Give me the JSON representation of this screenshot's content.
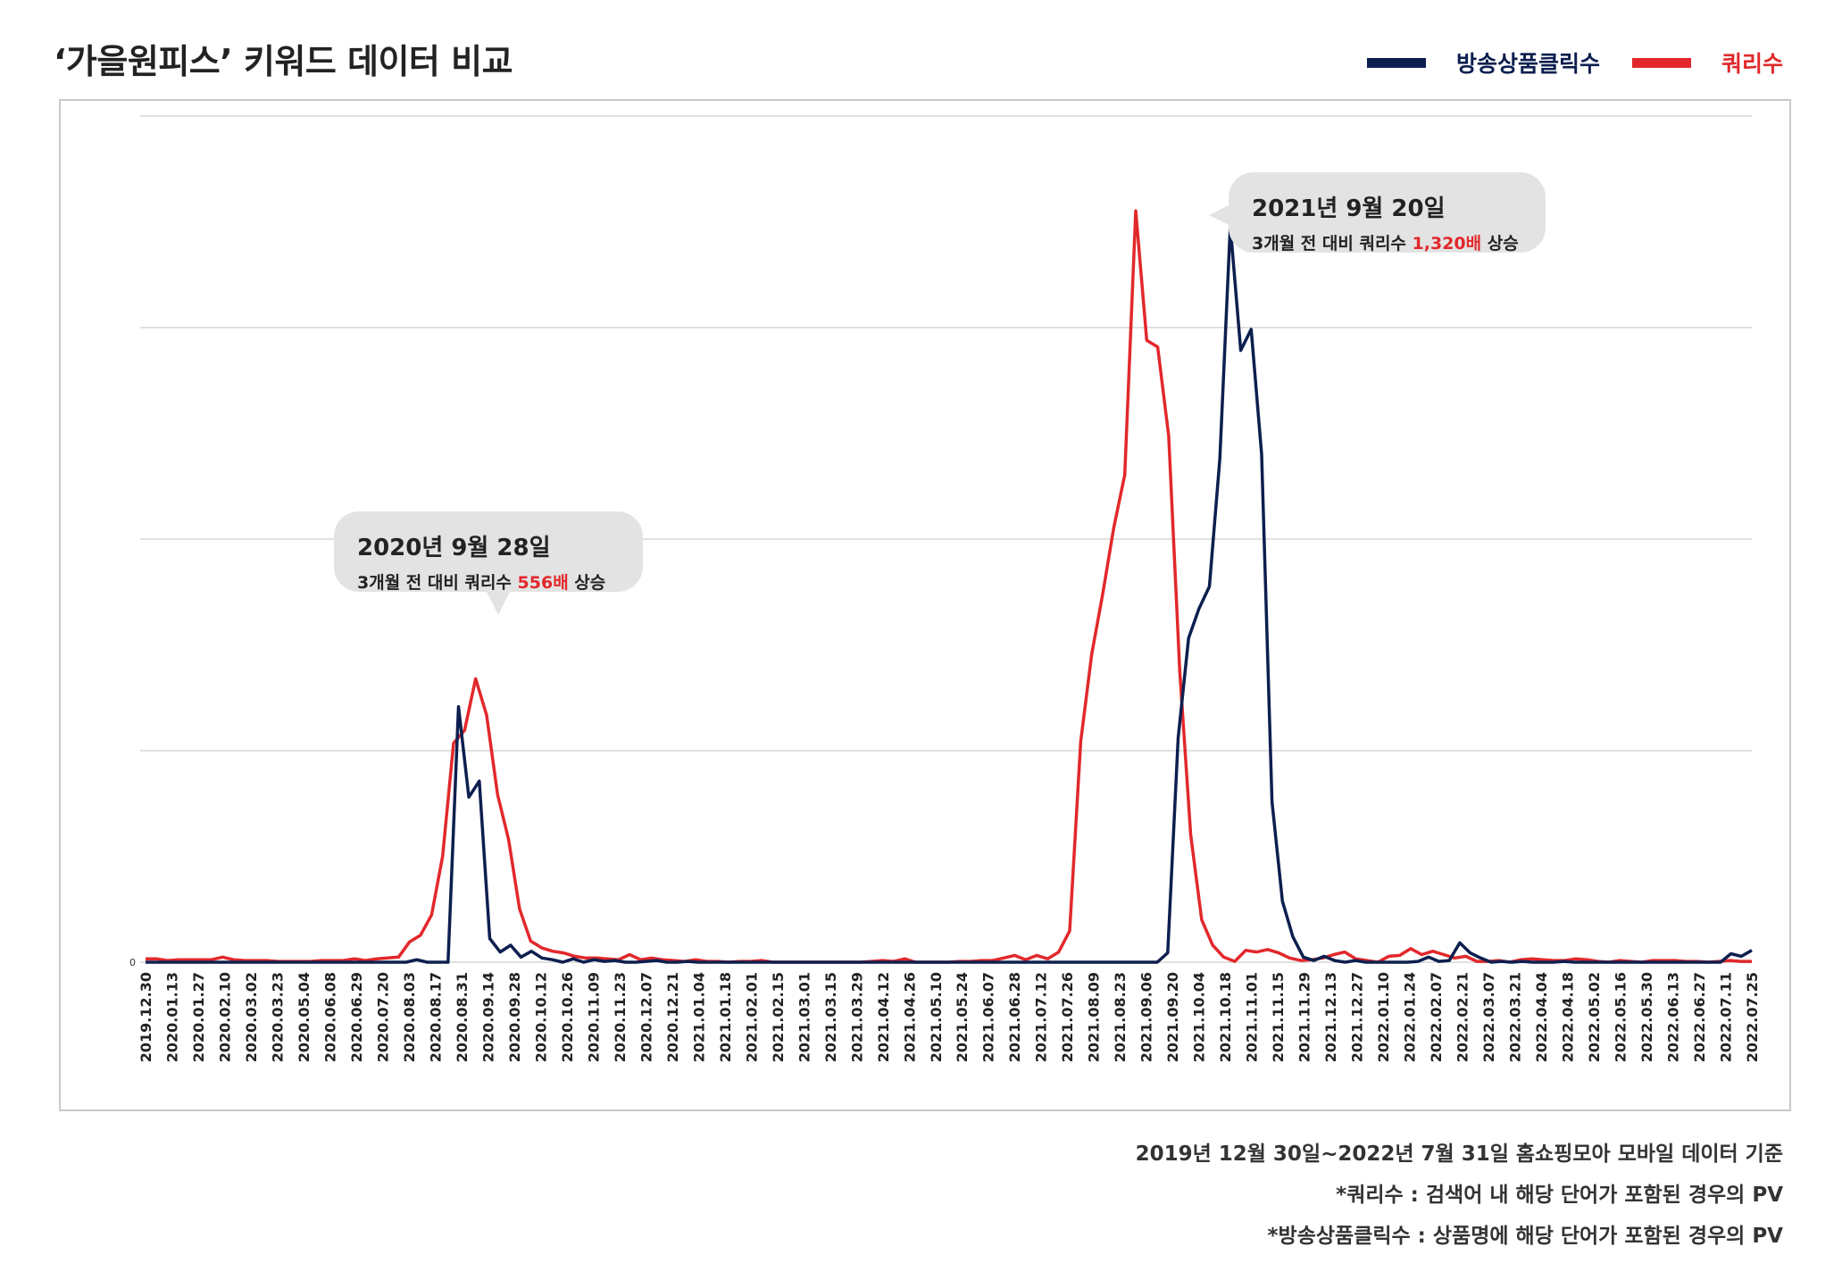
{
  "title": "‘가을원피스’ 키워드 데이터 비교",
  "legend": {
    "items": [
      {
        "label": "방송상품클릭수",
        "color": "#0d1f4f"
      },
      {
        "label": "쿼리수",
        "color": "#e2282b"
      }
    ]
  },
  "callouts": [
    {
      "heading": "2020년 9월 28일",
      "text_before": "3개월 전 대비 쿼리수 ",
      "highlight": "556배",
      "text_after": " 상승"
    },
    {
      "heading": "2021년 9월 20일",
      "text_before": "3개월 전 대비 쿼리수 ",
      "highlight": "1,320배",
      "text_after": " 상승"
    }
  ],
  "notes": [
    "2019년 12월 30일~2022년 7월 31일 홈쇼핑모아 모바일 데이터 기준",
    "*쿼리수 : 검색어 내 해당 단어가 포함된 경우의 PV",
    "*방송상품클릭수 : 상품명에 해당 단어가 포함된 경우의 PV"
  ],
  "chart_data": {
    "type": "line",
    "title": "‘가을원피스’ 키워드 데이터 비교",
    "xlabel": "",
    "ylabel": "",
    "y_tick_labels": [
      "0"
    ],
    "ylim": [
      0,
      100
    ],
    "grid": true,
    "legend_position": "top-right",
    "x_tick_labels": [
      "2019.12.30",
      "2020.01.13",
      "2020.01.27",
      "2020.02.10",
      "2020.03.02",
      "2020.03.23",
      "2020.05.04",
      "2020.06.08",
      "2020.06.29",
      "2020.07.20",
      "2020.08.03",
      "2020.08.17",
      "2020.08.31",
      "2020.09.14",
      "2020.09.28",
      "2020.10.12",
      "2020.10.26",
      "2020.11.09",
      "2020.11.23",
      "2020.12.07",
      "2020.12.21",
      "2021.01.04",
      "2021.01.18",
      "2021.02.01",
      "2021.02.15",
      "2021.03.01",
      "2021.03.15",
      "2021.03.29",
      "2021.04.12",
      "2021.04.26",
      "2021.05.10",
      "2021.05.24",
      "2021.06.07",
      "2021.06.28",
      "2021.07.12",
      "2021.07.26",
      "2021.08.09",
      "2021.08.23",
      "2021.09.06",
      "2021.09.20",
      "2021.10.04",
      "2021.10.18",
      "2021.11.01",
      "2021.11.15",
      "2021.11.29",
      "2021.12.13",
      "2021.12.27",
      "2022.01.10",
      "2022.01.24",
      "2022.02.07",
      "2022.02.21",
      "2022.03.07",
      "2022.03.21",
      "2022.04.04",
      "2022.04.18",
      "2022.05.02",
      "2022.05.16",
      "2022.05.30",
      "2022.06.13",
      "2022.06.27",
      "2022.07.11",
      "2022.07.25"
    ],
    "series": [
      {
        "name": "방송상품클릭수",
        "color": "#0d1f4f",
        "values": [
          0,
          0,
          0,
          0,
          0,
          0,
          0,
          0,
          0,
          0,
          0,
          0,
          0,
          0,
          0,
          0,
          0,
          0,
          0,
          0,
          0,
          0,
          0,
          0,
          0,
          0,
          0.3,
          0,
          0,
          0,
          30.2,
          19.5,
          21.4,
          2.8,
          1.2,
          2,
          0.6,
          1.3,
          0.5,
          0.3,
          0,
          0.4,
          0,
          0.3,
          0.1,
          0.2,
          0,
          0,
          0.1,
          0.2,
          0,
          0,
          0.1,
          0,
          0,
          0,
          0,
          0,
          0,
          0,
          0,
          0,
          0,
          0,
          0,
          0,
          0,
          0,
          0,
          0,
          0,
          0,
          0,
          0,
          0,
          0,
          0,
          0,
          0,
          0,
          0,
          0,
          0,
          0,
          0,
          0,
          0,
          0,
          0,
          0,
          0,
          0,
          0,
          0,
          0,
          0,
          0,
          0,
          1.1,
          26.5,
          38.3,
          41.8,
          44.4,
          59.5,
          87,
          72.3,
          74.8,
          60,
          19,
          7.2,
          3,
          0.6,
          0.2,
          0.7,
          0.2,
          0,
          0.2,
          0,
          0,
          0,
          0,
          0,
          0.1,
          0.6,
          0.1,
          0.2,
          2.3,
          1.1,
          0.5,
          0,
          0.1,
          0,
          0.1,
          0,
          0,
          0,
          0.1,
          0,
          0,
          0,
          0,
          0,
          0,
          0,
          0,
          0,
          0,
          0,
          0,
          0,
          0,
          0,
          1,
          0.7,
          1.4
        ]
      },
      {
        "name": "쿼리수",
        "color": "#e2282b",
        "values": [
          0.4,
          0.4,
          0.2,
          0.3,
          0.3,
          0.3,
          0.3,
          0.6,
          0.3,
          0.2,
          0.2,
          0.2,
          0.1,
          0.1,
          0.1,
          0.1,
          0.2,
          0.2,
          0.2,
          0.4,
          0.2,
          0.4,
          0.5,
          0.6,
          2.4,
          3.2,
          5.6,
          12.5,
          25.9,
          27.4,
          33.5,
          29.2,
          19.8,
          14.5,
          6.3,
          2.5,
          1.7,
          1.3,
          1.1,
          0.7,
          0.5,
          0.5,
          0.4,
          0.3,
          0.9,
          0.3,
          0.5,
          0.3,
          0.2,
          0.1,
          0.3,
          0.1,
          0.1,
          0,
          0.1,
          0.1,
          0.2,
          0,
          0,
          0,
          0,
          0,
          0,
          0,
          0,
          0,
          0.1,
          0.2,
          0.1,
          0.4,
          0,
          0,
          0,
          0,
          0.1,
          0.1,
          0.2,
          0.2,
          0.5,
          0.8,
          0.3,
          0.8,
          0.4,
          1.2,
          3.7,
          26.1,
          36.4,
          43.5,
          51.3,
          57.6,
          88.8,
          73.5,
          72.7,
          62.2,
          34.4,
          15,
          5,
          2,
          0.6,
          0.1,
          1.4,
          1.2,
          1.5,
          1.1,
          0.5,
          0.2,
          0.3,
          0.5,
          0.9,
          1.2,
          0.4,
          0.2,
          0,
          0.7,
          0.8,
          1.6,
          0.9,
          1.3,
          0.9,
          0.5,
          0.7,
          0.1,
          0.1,
          0.2,
          0,
          0.3,
          0.4,
          0.3,
          0.2,
          0.2,
          0.4,
          0.3,
          0.1,
          0,
          0.2,
          0.1,
          0,
          0.2,
          0.2,
          0.2,
          0.1,
          0.1,
          0,
          0.1,
          0.2,
          0.1,
          0.1
        ]
      }
    ]
  }
}
